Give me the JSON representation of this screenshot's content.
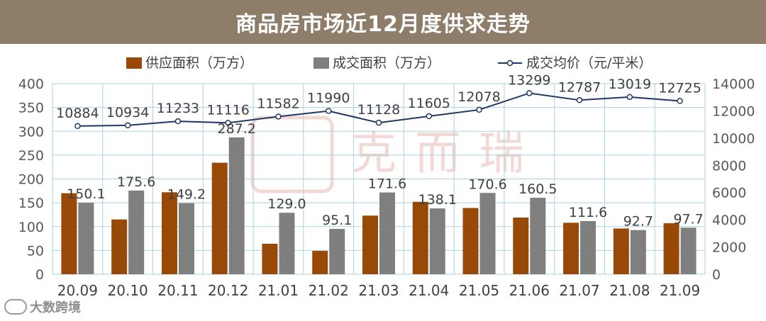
{
  "chart_data": {
    "type": "bar",
    "title": "商品房市场近12月度供求走势",
    "categories": [
      "20.09",
      "20.10",
      "20.11",
      "20.12",
      "21.01",
      "21.02",
      "21.03",
      "21.04",
      "21.05",
      "21.06",
      "21.07",
      "21.08",
      "21.09"
    ],
    "series": [
      {
        "name": "供应面积（万方）",
        "type": "bar",
        "axis": "left",
        "color": "#984807",
        "values": [
          170,
          115,
          172,
          234,
          64,
          49,
          123,
          152,
          139,
          119,
          108,
          96,
          107
        ]
      },
      {
        "name": "成交面积（万方）",
        "type": "bar",
        "axis": "left",
        "color": "#7f7f7f",
        "values": [
          150.1,
          175.6,
          149.2,
          287.2,
          129.0,
          95.1,
          171.6,
          138.1,
          170.6,
          160.5,
          111.6,
          92.7,
          97.7
        ],
        "labels": [
          "150.1",
          "175.6",
          "149.2",
          "287.2",
          "129.0",
          "95.1",
          "171.6",
          "138.1",
          "170.6",
          "160.5",
          "111.6",
          "92.7",
          "97.7"
        ]
      },
      {
        "name": "成交均价（元/平米）",
        "type": "line",
        "axis": "right",
        "color": "#1f3864",
        "values": [
          10884,
          10934,
          11233,
          11116,
          11582,
          11990,
          11128,
          11605,
          12078,
          13299,
          12787,
          13019,
          12725
        ],
        "labels": [
          "10884",
          "10934",
          "11233",
          "11116",
          "11582",
          "11990",
          "11128",
          "11605",
          "12078",
          "13299",
          "12787",
          "13019",
          "12725"
        ]
      }
    ],
    "y_left": {
      "min": 0,
      "max": 400,
      "ticks": [
        "0",
        "50",
        "100",
        "150",
        "200",
        "250",
        "300",
        "350",
        "400"
      ]
    },
    "y_right": {
      "min": 0,
      "max": 14000,
      "ticks": [
        "0",
        "2000",
        "4000",
        "6000",
        "8000",
        "10000",
        "12000",
        "14000"
      ]
    },
    "grid": true,
    "legend_position": "top"
  },
  "watermark": "克而瑞",
  "source_logo": "大数跨境",
  "colors": {
    "title_bar": "#8e7e69",
    "grid": "#a9d3dc",
    "tick_text": "#595959"
  }
}
